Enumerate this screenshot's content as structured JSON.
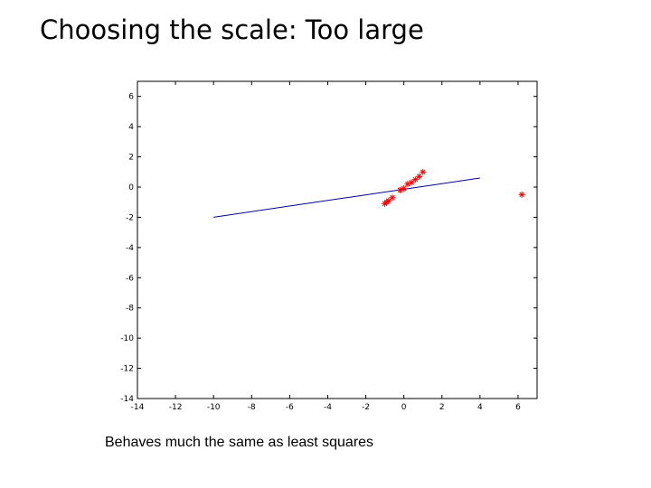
{
  "slide": {
    "title": "Choosing the scale: Too large",
    "caption": "Behaves much the same as least squares"
  },
  "chart_data": {
    "type": "scatter",
    "xlim": [
      -14,
      7
    ],
    "ylim": [
      -14,
      7
    ],
    "xticks": [
      -14,
      -12,
      -10,
      -8,
      -6,
      -4,
      -2,
      0,
      2,
      4,
      6
    ],
    "yticks": [
      -14,
      -12,
      -10,
      -8,
      -6,
      -4,
      -2,
      0,
      2,
      4,
      6
    ],
    "grid": false,
    "series": [
      {
        "type": "line",
        "color": "#00008b",
        "x": [
          -10,
          4
        ],
        "y": [
          -2.0,
          0.6
        ]
      },
      {
        "type": "scatter",
        "marker": "asterisk",
        "color": "#ff0000",
        "x": [
          -1.0,
          -0.9,
          -0.8,
          -0.6,
          -0.2,
          0.0,
          0.2,
          0.4,
          0.6,
          0.8,
          1.0,
          6.2
        ],
        "y": [
          -1.1,
          -1.0,
          -0.9,
          -0.7,
          -0.2,
          -0.1,
          0.2,
          0.3,
          0.5,
          0.7,
          1.0,
          -0.5
        ]
      }
    ]
  }
}
